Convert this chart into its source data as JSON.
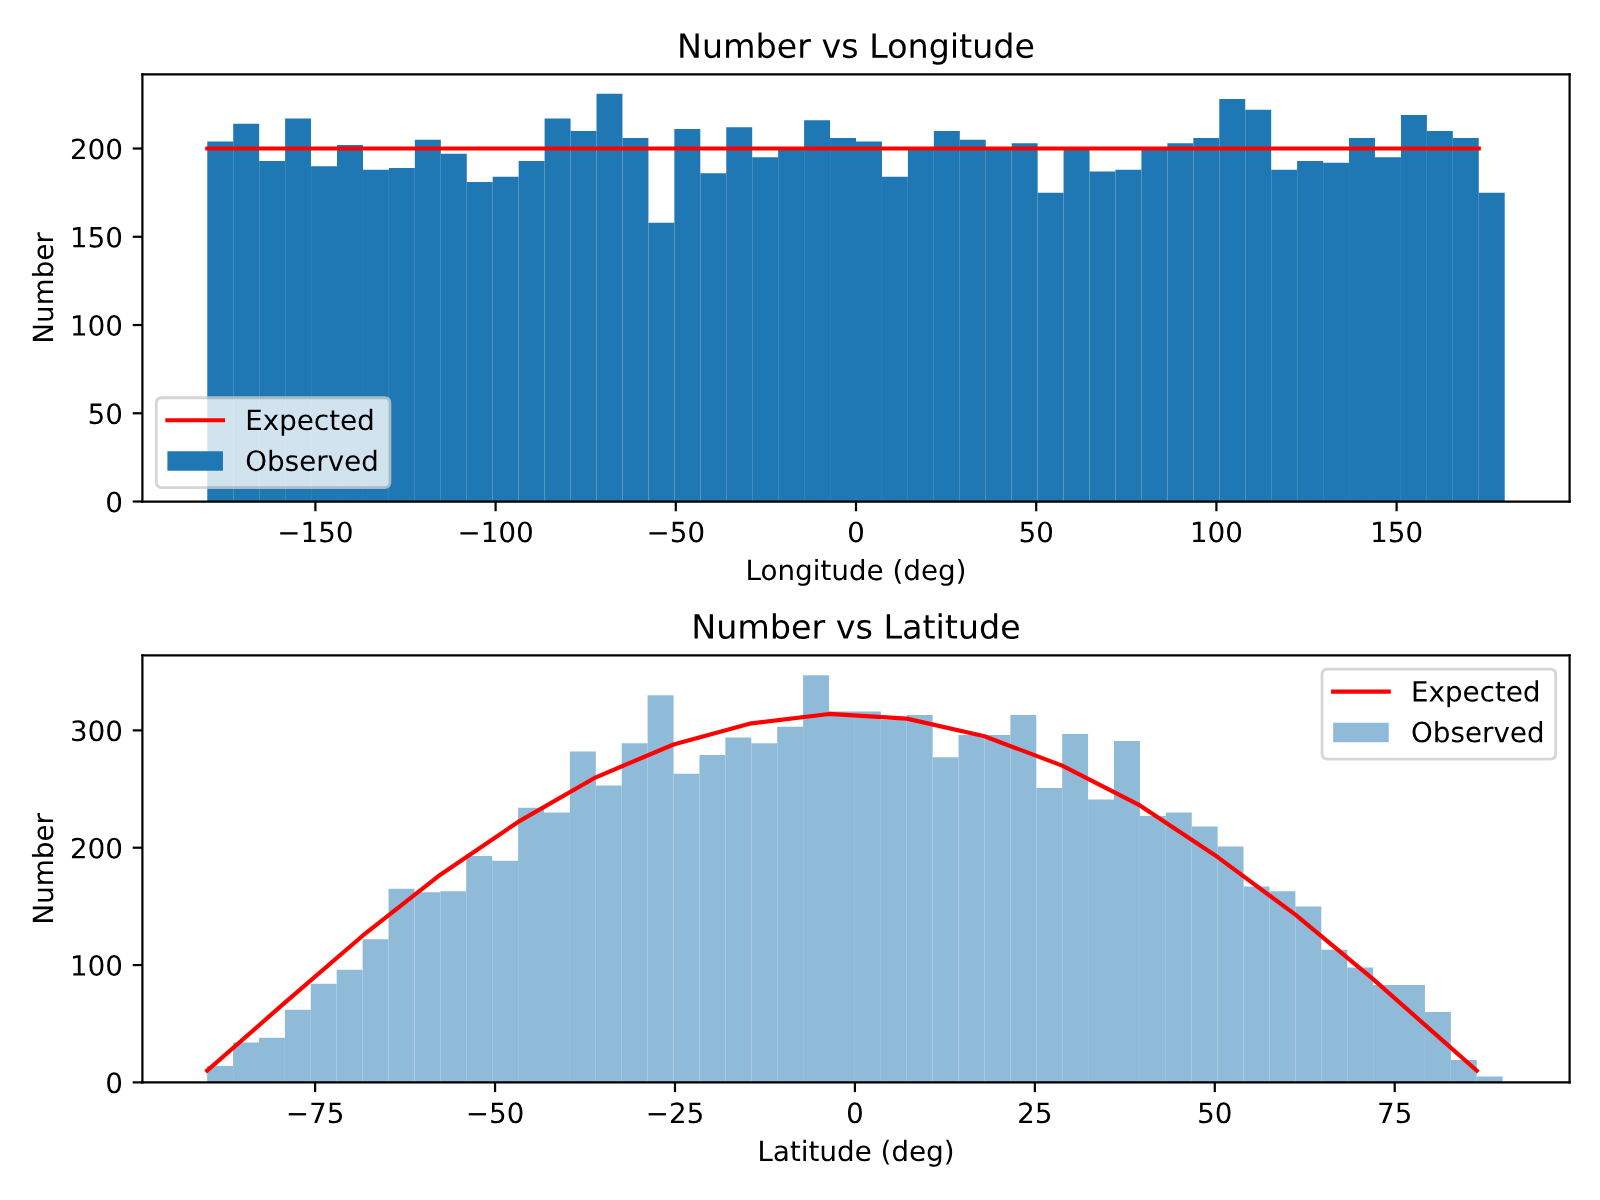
{
  "chart_data": [
    {
      "type": "histogram",
      "title": "Number vs Longitude",
      "xlabel": "Longitude (deg)",
      "ylabel": "Number",
      "xlim": [
        -198,
        198
      ],
      "xticks": [
        -150,
        -100,
        -50,
        0,
        50,
        100,
        150
      ],
      "ylim": [
        0,
        242
      ],
      "yticks": [
        0,
        50,
        100,
        150,
        200
      ],
      "legend": "lower left",
      "grid": false,
      "bins": [
        -180,
        -172.8,
        -165.6,
        -158.4,
        -151.2,
        -144,
        -136.8,
        -129.6,
        -122.4,
        -115.2,
        -108,
        -100.8,
        -93.6,
        -86.4,
        -79.2,
        -72,
        -64.8,
        -57.6,
        -50.4,
        -43.2,
        -36,
        -28.8,
        -21.6,
        -14.4,
        -7.2,
        0,
        7.2,
        14.4,
        21.6,
        28.8,
        36,
        43.2,
        50.4,
        57.6,
        64.8,
        72,
        79.2,
        86.4,
        93.6,
        100.8,
        108,
        115.2,
        122.4,
        129.6,
        136.8,
        144,
        151.2,
        158.4,
        165.6,
        172.8,
        180
      ],
      "series": [
        {
          "name": "Expected",
          "type": "line",
          "color": "#ff0000",
          "x": [
            -180,
            172.8
          ],
          "values": [
            200,
            200
          ]
        },
        {
          "name": "Observed",
          "color": "#1f77b4",
          "values": [
            204,
            214,
            193,
            217,
            190,
            202,
            188,
            189,
            205,
            197,
            181,
            184,
            193,
            217,
            210,
            231,
            206,
            158,
            211,
            186,
            212,
            195,
            200,
            216,
            206,
            204,
            184,
            200,
            210,
            205,
            200,
            203,
            175,
            200,
            187,
            188,
            200,
            203,
            206,
            228,
            222,
            188,
            193,
            192,
            206,
            195,
            219,
            210,
            206,
            175
          ]
        }
      ]
    },
    {
      "type": "histogram",
      "title": "Number vs Latitude",
      "xlabel": "Latitude (deg)",
      "ylabel": "Number",
      "xlim": [
        -99,
        99.3
      ],
      "xticks": [
        -75,
        -50,
        -25,
        0,
        25,
        50,
        75
      ],
      "ylim": [
        0,
        364
      ],
      "yticks": [
        0,
        100,
        200,
        300
      ],
      "legend": "upper right",
      "grid": false,
      "bins": [
        -90,
        -86.4,
        -82.8,
        -79.2,
        -75.6,
        -72,
        -68.4,
        -64.8,
        -61.2,
        -57.6,
        -54,
        -50.4,
        -46.8,
        -43.2,
        -39.6,
        -36,
        -32.4,
        -28.8,
        -25.2,
        -21.6,
        -18,
        -14.4,
        -10.8,
        -7.2,
        -3.6,
        0,
        3.6,
        7.2,
        10.8,
        14.4,
        18,
        21.6,
        25.2,
        28.8,
        32.4,
        36,
        39.6,
        43.2,
        46.8,
        50.4,
        54,
        57.6,
        61.2,
        64.8,
        68.4,
        72,
        75.6,
        79.2,
        82.8,
        86.4,
        90
      ],
      "series": [
        {
          "name": "Expected",
          "type": "line",
          "color": "#ff0000",
          "x": [
            -90,
            -79.2,
            -68.4,
            -57.6,
            -46.8,
            -36,
            -25.2,
            -14.4,
            -3.6,
            7.2,
            18,
            28.8,
            39.6,
            50.4,
            61.2,
            72,
            79.2,
            86.4
          ],
          "values": [
            10,
            68,
            125,
            177,
            222,
            260,
            288,
            306,
            314,
            310,
            295,
            270,
            236,
            192,
            143,
            88,
            49,
            10
          ]
        },
        {
          "name": "Observed",
          "color": "#8fbbd9",
          "values": [
            14,
            34,
            38,
            62,
            84,
            96,
            122,
            165,
            162,
            163,
            193,
            189,
            234,
            230,
            282,
            253,
            289,
            330,
            263,
            279,
            294,
            289,
            303,
            347,
            316,
            316,
            309,
            313,
            277,
            296,
            296,
            313,
            251,
            297,
            241,
            291,
            227,
            230,
            218,
            201,
            167,
            163,
            150,
            113,
            98,
            83,
            83,
            60,
            19,
            5
          ]
        }
      ]
    }
  ]
}
